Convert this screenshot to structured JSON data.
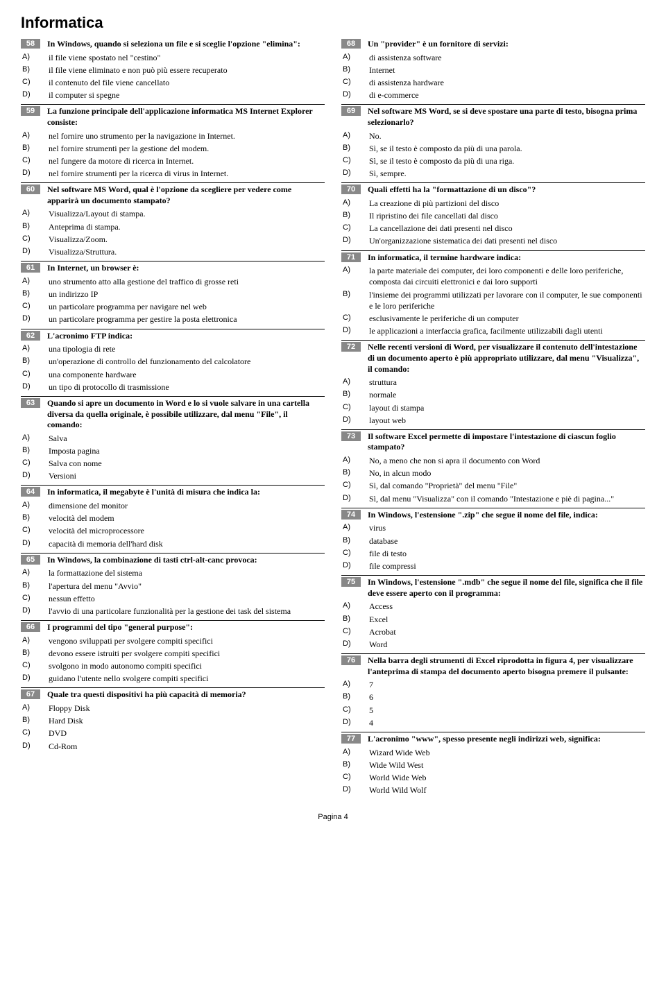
{
  "title": "Informatica",
  "footer": "Pagina 4",
  "option_labels": [
    "A)",
    "B)",
    "C)",
    "D)"
  ],
  "col1": [
    {
      "num": "58",
      "q": "In Windows, quando si seleziona un file e si sceglie l'opzione \"elimina\":",
      "opts": [
        "il file viene spostato nel \"cestino\"",
        "il file viene eliminato e non può più essere recuperato",
        "il contenuto del file viene cancellato",
        "il computer si spegne"
      ]
    },
    {
      "num": "59",
      "q": "La funzione principale dell'applicazione informatica MS Internet Explorer consiste:",
      "opts": [
        "nel fornire uno strumento per la navigazione in Internet.",
        "nel fornire strumenti per la gestione del modem.",
        "nel fungere da motore di ricerca in Internet.",
        "nel fornire strumenti per la ricerca di virus in Internet."
      ]
    },
    {
      "num": "60",
      "q": "Nel software MS Word, qual è l'opzione da scegliere per vedere come apparirà un documento stampato?",
      "opts": [
        "Visualizza/Layout di stampa.",
        "Anteprima di stampa.",
        "Visualizza/Zoom.",
        "Visualizza/Struttura."
      ]
    },
    {
      "num": "61",
      "q": "In Internet, un browser è:",
      "opts": [
        "uno strumento atto alla gestione del traffico di grosse reti",
        "un indirizzo IP",
        "un particolare programma per navigare nel web",
        "un particolare programma per gestire la posta elettronica"
      ]
    },
    {
      "num": "62",
      "q": "L'acronimo FTP indica:",
      "opts": [
        "una tipologia di rete",
        "un'operazione di controllo del funzionamento del calcolatore",
        "una componente hardware",
        "un tipo di protocollo di trasmissione"
      ]
    },
    {
      "num": "63",
      "q": "Quando si apre un documento in Word e lo si vuole salvare in una cartella diversa da quella originale, è possibile utilizzare, dal menu \"File\", il comando:",
      "opts": [
        "Salva",
        "Imposta pagina",
        "Salva con nome",
        "Versioni"
      ]
    },
    {
      "num": "64",
      "q": "In informatica, il megabyte è l'unità di misura che indica la:",
      "opts": [
        "dimensione del monitor",
        "velocità del modem",
        "velocità del microprocessore",
        "capacità di memoria dell'hard disk"
      ]
    },
    {
      "num": "65",
      "q": "In Windows, la combinazione di tasti ctrl-alt-canc provoca:",
      "opts": [
        "la formattazione del sistema",
        "l'apertura del menu \"Avvio\"",
        "nessun effetto",
        "l'avvio di una particolare funzionalità per la gestione dei task del sistema"
      ]
    },
    {
      "num": "66",
      "q": "I programmi del tipo \"general purpose\":",
      "opts": [
        "vengono sviluppati per svolgere compiti specifici",
        "devono essere istruiti  per svolgere compiti specifici",
        "svolgono in modo autonomo compiti specifici",
        "guidano l'utente nello svolgere compiti specifici"
      ]
    },
    {
      "num": "67",
      "q": "Quale tra questi dispositivi ha più capacità di memoria?",
      "opts": [
        "Floppy Disk",
        "Hard Disk",
        "DVD",
        "Cd-Rom"
      ]
    }
  ],
  "col2": [
    {
      "num": "68",
      "q": "Un \"provider\" è un fornitore di servizi:",
      "opts": [
        "di assistenza software",
        "Internet",
        "di assistenza hardware",
        "di e-commerce"
      ]
    },
    {
      "num": "69",
      "q": "Nel software MS Word, se si deve spostare una parte di testo, bisogna prima selezionarlo?",
      "opts": [
        "No.",
        "Sì, se il testo è composto da più di una parola.",
        "Sì, se il testo è composto da più di una riga.",
        "Sì, sempre."
      ]
    },
    {
      "num": "70",
      "q": "Quali effetti ha la \"formattazione di un disco\"?",
      "opts": [
        "La creazione di più partizioni del disco",
        "Il ripristino dei file cancellati dal disco",
        "La cancellazione dei dati presenti nel disco",
        "Un'organizzazione sistematica dei dati presenti nel disco"
      ]
    },
    {
      "num": "71",
      "q": "In informatica, il termine hardware indica:",
      "opts": [
        "la parte materiale dei computer, dei loro componenti e delle loro periferiche, composta dai circuiti elettronici e dai loro supporti",
        "l'insieme dei programmi utilizzati per lavorare con il computer, le sue componenti e le loro periferiche",
        "esclusivamente le periferiche di un computer",
        "le applicazioni a interfaccia grafica, facilmente utilizzabili dagli utenti"
      ]
    },
    {
      "num": "72",
      "q": "Nelle recenti versioni di Word, per visualizzare il contenuto dell'intestazione di un documento aperto è più appropriato utilizzare, dal menu \"Visualizza\", il comando:",
      "opts": [
        "struttura",
        "normale",
        "layout di stampa",
        "layout web"
      ]
    },
    {
      "num": "73",
      "q": "Il software Excel permette di impostare l'intestazione di ciascun foglio stampato?",
      "opts": [
        "No, a meno che non si apra il documento con Word",
        "No, in alcun modo",
        "Sì, dal comando \"Proprietà\" del menu \"File\"",
        "Sì, dal menu \"Visualizza\" con il comando \"Intestazione e piè di pagina...\""
      ]
    },
    {
      "num": "74",
      "q": "In Windows, l'estensione \".zip\" che segue il nome del file, indica:",
      "opts": [
        "virus",
        "database",
        "file di testo",
        "file compressi"
      ]
    },
    {
      "num": "75",
      "q": "In Windows, l'estensione \".mdb\" che segue il nome del file, significa che il file deve essere aperto con il programma:",
      "opts": [
        "Access",
        "Excel",
        "Acrobat",
        "Word"
      ]
    },
    {
      "num": "76",
      "q": "Nella barra degli strumenti di Excel riprodotta in figura 4, per visualizzare l'anteprima di stampa del documento aperto bisogna premere il pulsante:",
      "opts": [
        "7",
        "6",
        "5",
        "4"
      ]
    },
    {
      "num": "77",
      "q": "L'acronimo \"www\", spesso presente negli indirizzi web, significa:",
      "opts": [
        "Wizard Wide Web",
        "Wide Wild West",
        "World Wide Web",
        "World Wild Wolf"
      ]
    }
  ]
}
